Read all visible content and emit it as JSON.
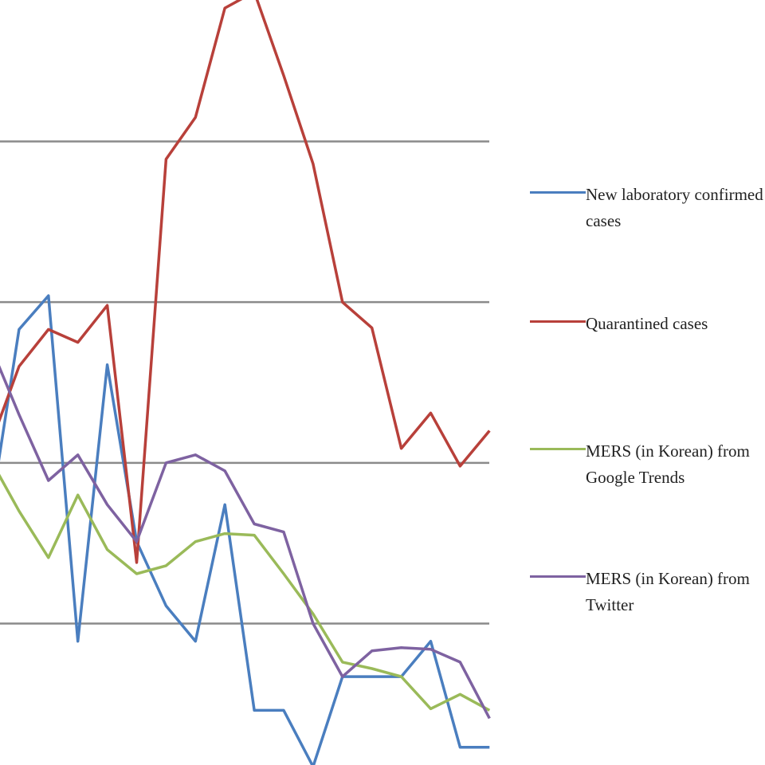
{
  "chart_data": {
    "type": "line",
    "categories": [
      null,
      null,
      null,
      null,
      null,
      null,
      null,
      null,
      null,
      null,
      null,
      null,
      null,
      null,
      null,
      null,
      null,
      null
    ],
    "ylim": [
      0.12,
      4.88
    ],
    "yticks": [
      1,
      2,
      3,
      4
    ],
    "grid": true,
    "legend": "right",
    "series": [
      {
        "name": "New laboratory confirmed cases",
        "color": "#4a7ebf",
        "values": [
          1.65,
          2.83,
          3.04,
          0.89,
          2.61,
          1.51,
          1.11,
          0.89,
          1.74,
          0.46,
          0.46,
          0.11,
          0.67,
          0.67,
          0.67,
          0.89,
          0.23,
          0.23
        ]
      },
      {
        "name": "Quarantined cases",
        "color": "#b8403a",
        "values": [
          2.1,
          2.6,
          2.83,
          2.75,
          2.98,
          1.38,
          3.89,
          4.15,
          4.83,
          4.93,
          4.41,
          3.86,
          3.0,
          2.84,
          2.09,
          2.31,
          1.98,
          2.2
        ]
      },
      {
        "name": "MERS (in Korean) from Google Trends",
        "color": "#9aba59",
        "values": [
          2.03,
          1.7,
          1.41,
          1.8,
          1.46,
          1.31,
          1.36,
          1.51,
          1.56,
          1.55,
          1.31,
          1.06,
          0.76,
          0.72,
          0.67,
          0.47,
          0.56,
          0.46
        ]
      },
      {
        "name": "MERS (in Korean) from Twitter",
        "color": "#7e62a1",
        "values": [
          2.74,
          2.3,
          1.89,
          2.05,
          1.74,
          1.51,
          2.0,
          2.05,
          1.95,
          1.62,
          1.57,
          1.0,
          0.67,
          0.83,
          0.85,
          0.84,
          0.76,
          0.41
        ]
      }
    ]
  }
}
